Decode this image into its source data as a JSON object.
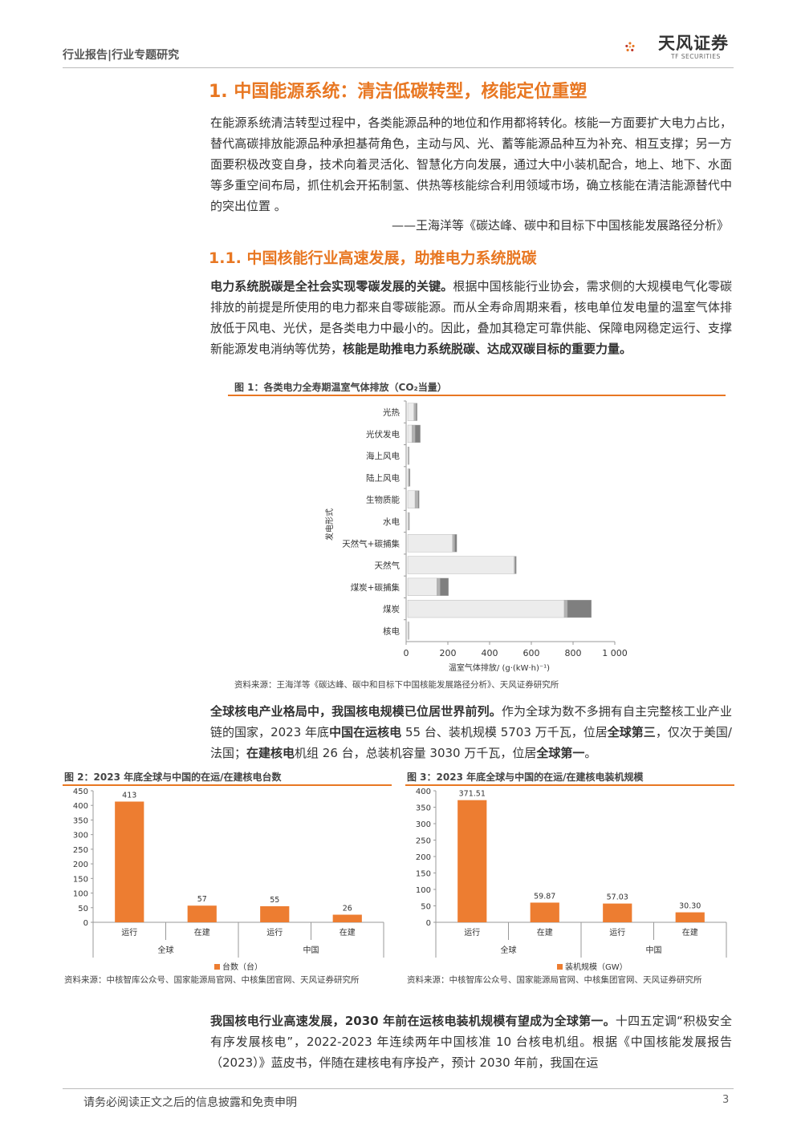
{
  "header": {
    "section": "行业报告|行业专题研究",
    "logo_cn": "天风证券",
    "logo_en": "TF SECURITIES"
  },
  "h1": "1. 中国能源系统：清洁低碳转型，核能定位重塑",
  "intro_para": "在能源系统清洁转型过程中，各类能源品种的地位和作用都将转化。核能一方面要扩大电力占比，替代高碳排放能源品种承担基荷角色，主动与风、光、蓄等能源品种互为补充、相互支撑；另一方面要积极改变自身，技术向着灵活化、智慧化方向发展，通过大中小装机配合，地上、地下、水面等多重空间布局，抓住机会开拓制氢、供热等核能综合利用领域市场，确立核能在清洁能源替代中的突出位置 。",
  "quote": "——王海洋等《碳达峰、碳中和目标下中国核能发展路径分析》",
  "h2": "1.1. 中国核能行业高速发展，助推电力系统脱碳",
  "para2": {
    "bold1": "电力系统脱碳是全社会实现零碳发展的关键。",
    "text1": "根据中国核能行业协会，需求侧的大规模电气化零碳排放的前提是所使用的电力都来自零碳能源。而从全寿命周期来看，核电单位发电量的温室气体排放低于风电、光伏，是各类电力中最小的。因此，叠加其稳定可靠供能、保障电网稳定运行、支撑新能源发电消纳等优势，",
    "bold2": "核能是助推电力系统脱碳、达成双碳目标的重要力量。"
  },
  "fig1": {
    "title": "图 1：各类电力全寿期温室气体排放（CO₂当量）",
    "source": "资料来源：王海洋等《碳达峰、碳中和目标下中国核能发展路径分析》、天风证券研究所"
  },
  "para3": {
    "bold1": "全球核电产业格局中，我国核电规模已位居世界前列。",
    "t1": "作为全球为数不多拥有自主完整核工业产业链的国家，2023 年底",
    "b2": "中国在运核电",
    "t2": " 55 台、装机规模 5703 万千瓦，位居",
    "b3": "全球第三",
    "t3": "，仅次于美国/法国；",
    "b4": "在建核电",
    "t4": "机组 26 台，总装机容量 3030 万千瓦，位居",
    "b5": "全球第一",
    "t5": "。"
  },
  "fig2": {
    "title": "图 2：2023 年底全球与中国的在运/在建核电台数",
    "source": "资料来源：中核智库公众号、国家能源局官网、中核集团官网、天风证券研究所"
  },
  "fig3": {
    "title": "图 3：2023 年底全球与中国的在运/在建核电装机规模",
    "source": "资料来源：中核智库公众号、国家能源局官网、中核集团官网、天风证券研究所"
  },
  "para4": {
    "bold1": "我国核电行业高速发展，2030 年前在运核电装机规模有望成为全球第一。",
    "text1": "十四五定调“积极安全有序发展核电”，2022-2023 年连续两年中国核准 10 台核电机组。根据《中国核能发展报告（2023）》蓝皮书，伴随在建核电有序投产，预计 2030 年前，我国在运"
  },
  "footer": {
    "disclaimer": "请务必阅读正文之后的信息披露和免责申明",
    "page": "3"
  },
  "colors": {
    "accent": "#e87722",
    "bar_orange": "#ed7d31"
  },
  "chart_data": [
    {
      "type": "bar",
      "orientation": "horizontal",
      "stacked": true,
      "title": "",
      "xlabel": "温室气体排放/ (g·(kW·h)⁻¹)",
      "ylabel": "发电形式",
      "xlim": [
        0,
        1000
      ],
      "xticks": [
        "0",
        "200",
        "400",
        "600",
        "800",
        "1 000"
      ],
      "categories": [
        "光热",
        "光伏发电",
        "海上风电",
        "陆上风电",
        "生物质能",
        "水电",
        "天然气+碳捕集",
        "天然气",
        "煤炭+碳捕集",
        "煤炭",
        "核电"
      ],
      "series": [
        {
          "values": [
            30,
            20,
            3,
            4,
            35,
            4,
            215,
            510,
            140,
            750,
            4
          ],
          "color": "#ececec"
        },
        {
          "values": [
            10,
            15,
            2,
            3,
            15,
            2,
            10,
            5,
            15,
            15,
            1
          ],
          "color": "#b3b3b3"
        },
        {
          "values": [
            5,
            25,
            2,
            4,
            5,
            2,
            10,
            5,
            40,
            115,
            1
          ],
          "color": "#7f7f7f"
        }
      ]
    },
    {
      "type": "bar",
      "title": "",
      "categories": [
        "运行",
        "在建",
        "运行",
        "在建"
      ],
      "groups": [
        {
          "label": "全球",
          "span": 2
        },
        {
          "label": "中国",
          "span": 2
        }
      ],
      "series": [
        {
          "name": "台数（台）",
          "values": [
            413,
            57,
            55,
            26
          ],
          "labels": [
            "413",
            "57",
            "55",
            "26"
          ]
        }
      ],
      "ylim": [
        0,
        450
      ],
      "yticks": [
        "0",
        "50",
        "100",
        "150",
        "200",
        "250",
        "300",
        "350",
        "400",
        "450"
      ]
    },
    {
      "type": "bar",
      "title": "",
      "categories": [
        "运行",
        "在建",
        "运行",
        "在建"
      ],
      "groups": [
        {
          "label": "全球",
          "span": 2
        },
        {
          "label": "中国",
          "span": 2
        }
      ],
      "series": [
        {
          "name": "装机规模（GW）",
          "values": [
            371.51,
            59.87,
            57.03,
            30.3
          ],
          "labels": [
            "371.51",
            "59.87",
            "57.03",
            "30.30"
          ]
        }
      ],
      "ylim": [
        0,
        400
      ],
      "yticks": [
        "0",
        "50",
        "100",
        "150",
        "200",
        "250",
        "300",
        "350",
        "400"
      ]
    }
  ]
}
